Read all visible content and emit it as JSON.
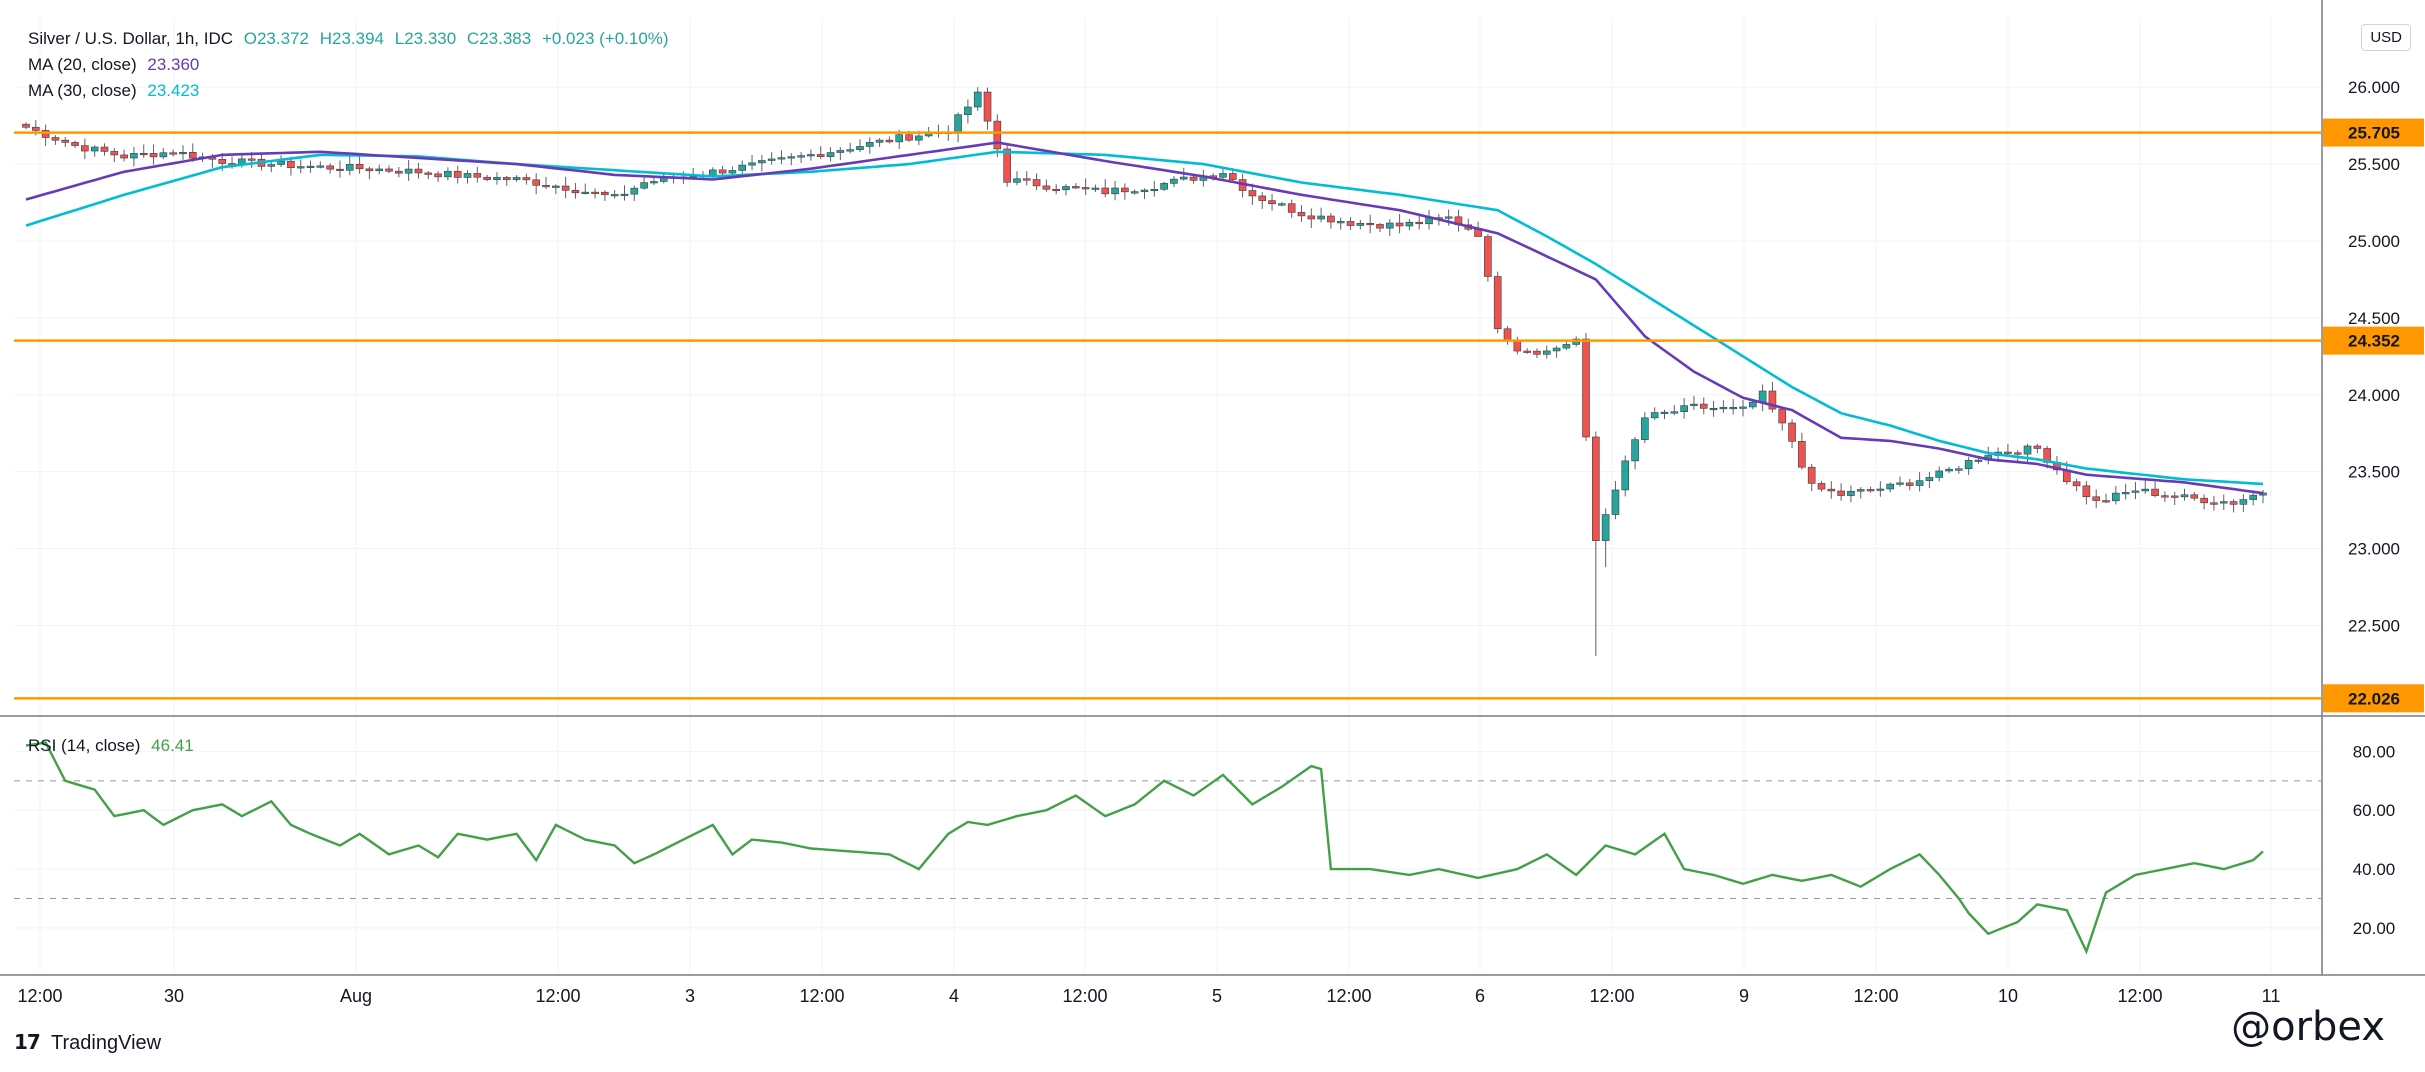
{
  "legend": {
    "title": "Silver / U.S. Dollar, 1h, IDC",
    "open": "O23.372",
    "high": "H23.394",
    "low": "L23.330",
    "close": "C23.383",
    "change": "+0.023 (+0.10%)",
    "ma20_label": "MA (20, close)",
    "ma20_value": "23.360",
    "ma30_label": "MA (30, close)",
    "ma30_value": "23.423",
    "rsi_label": "RSI (14, close)",
    "rsi_value": "46.41"
  },
  "currency": "USD",
  "footer": {
    "brand": "TradingView",
    "watermark": "@orbex"
  },
  "colors": {
    "up": "#26a69a",
    "down": "#ef5350",
    "level": "#ff9800",
    "ma20": "#673ab7",
    "ma30": "#00bcd4",
    "rsi": "#43a047",
    "grid": "#f0f3fa"
  },
  "chart_data": {
    "type": "candlestick",
    "price_axis": {
      "ticks": [
        "26.000",
        "25.500",
        "25.000",
        "24.500",
        "24.000",
        "23.500",
        "23.000",
        "22.500"
      ],
      "range": [
        21.95,
        26.45
      ]
    },
    "rsi_axis": {
      "ticks": [
        "80.00",
        "60.00",
        "40.00",
        "20.00"
      ],
      "range": [
        5,
        90
      ],
      "bands": [
        70,
        30
      ]
    },
    "time_axis": [
      "12:00",
      "30",
      "Aug",
      "12:00",
      "3",
      "12:00",
      "4",
      "12:00",
      "5",
      "12:00",
      "6",
      "12:00",
      "9",
      "12:00",
      "10",
      "12:00",
      "11"
    ],
    "levels": [
      {
        "value": 25.705,
        "label": "25.705"
      },
      {
        "value": 24.352,
        "label": "24.352"
      },
      {
        "value": 22.026,
        "label": "22.026"
      }
    ],
    "anchors": [
      [
        0,
        25.74
      ],
      [
        5,
        25.62
      ],
      [
        10,
        25.55
      ],
      [
        15,
        25.58
      ],
      [
        20,
        25.52
      ],
      [
        25,
        25.5
      ],
      [
        30,
        25.48
      ],
      [
        35,
        25.47
      ],
      [
        40,
        25.45
      ],
      [
        45,
        25.42
      ],
      [
        50,
        25.4
      ],
      [
        55,
        25.35
      ],
      [
        60,
        25.28
      ],
      [
        63,
        25.38
      ],
      [
        70,
        25.45
      ],
      [
        75,
        25.5
      ],
      [
        80,
        25.56
      ],
      [
        85,
        25.62
      ],
      [
        90,
        25.68
      ],
      [
        94,
        25.72
      ],
      [
        97,
        25.95
      ],
      [
        99,
        25.6
      ],
      [
        100,
        25.4
      ],
      [
        105,
        25.35
      ],
      [
        110,
        25.32
      ],
      [
        115,
        25.36
      ],
      [
        122,
        25.45
      ],
      [
        125,
        25.3
      ],
      [
        130,
        25.18
      ],
      [
        135,
        25.12
      ],
      [
        140,
        25.1
      ],
      [
        145,
        25.15
      ],
      [
        148,
        25.05
      ],
      [
        150,
        24.45
      ],
      [
        152,
        24.3
      ],
      [
        155,
        24.28
      ],
      [
        158,
        24.36
      ],
      [
        160,
        23.05
      ],
      [
        162,
        23.4
      ],
      [
        165,
        23.85
      ],
      [
        170,
        23.92
      ],
      [
        175,
        23.9
      ],
      [
        177,
        24.0
      ],
      [
        180,
        23.7
      ],
      [
        182,
        23.4
      ],
      [
        185,
        23.35
      ],
      [
        190,
        23.4
      ],
      [
        195,
        23.48
      ],
      [
        200,
        23.62
      ],
      [
        205,
        23.65
      ],
      [
        208,
        23.45
      ],
      [
        211,
        23.3
      ],
      [
        215,
        23.38
      ],
      [
        220,
        23.33
      ],
      [
        225,
        23.3
      ],
      [
        228,
        23.37
      ]
    ],
    "ma20": [
      [
        0,
        25.27
      ],
      [
        10,
        25.45
      ],
      [
        20,
        25.56
      ],
      [
        30,
        25.58
      ],
      [
        40,
        25.54
      ],
      [
        50,
        25.5
      ],
      [
        60,
        25.43
      ],
      [
        70,
        25.4
      ],
      [
        80,
        25.47
      ],
      [
        90,
        25.56
      ],
      [
        99,
        25.64
      ],
      [
        110,
        25.52
      ],
      [
        120,
        25.42
      ],
      [
        130,
        25.3
      ],
      [
        140,
        25.2
      ],
      [
        150,
        25.05
      ],
      [
        160,
        24.75
      ],
      [
        165,
        24.38
      ],
      [
        170,
        24.15
      ],
      [
        175,
        23.98
      ],
      [
        180,
        23.9
      ],
      [
        185,
        23.72
      ],
      [
        190,
        23.7
      ],
      [
        195,
        23.65
      ],
      [
        200,
        23.58
      ],
      [
        205,
        23.55
      ],
      [
        210,
        23.48
      ],
      [
        220,
        23.43
      ],
      [
        228,
        23.36
      ]
    ],
    "ma30": [
      [
        0,
        25.1
      ],
      [
        10,
        25.3
      ],
      [
        20,
        25.48
      ],
      [
        30,
        25.56
      ],
      [
        40,
        25.55
      ],
      [
        50,
        25.5
      ],
      [
        60,
        25.46
      ],
      [
        70,
        25.42
      ],
      [
        80,
        25.45
      ],
      [
        90,
        25.5
      ],
      [
        99,
        25.58
      ],
      [
        110,
        25.56
      ],
      [
        120,
        25.5
      ],
      [
        130,
        25.38
      ],
      [
        140,
        25.3
      ],
      [
        150,
        25.2
      ],
      [
        155,
        25.03
      ],
      [
        160,
        24.85
      ],
      [
        165,
        24.65
      ],
      [
        170,
        24.45
      ],
      [
        175,
        24.25
      ],
      [
        180,
        24.05
      ],
      [
        185,
        23.88
      ],
      [
        190,
        23.8
      ],
      [
        195,
        23.7
      ],
      [
        200,
        23.62
      ],
      [
        205,
        23.58
      ],
      [
        210,
        23.52
      ],
      [
        220,
        23.45
      ],
      [
        228,
        23.42
      ]
    ],
    "rsi": [
      [
        0,
        82
      ],
      [
        2,
        83
      ],
      [
        4,
        70
      ],
      [
        7,
        67
      ],
      [
        9,
        58
      ],
      [
        12,
        60
      ],
      [
        14,
        55
      ],
      [
        17,
        60
      ],
      [
        20,
        62
      ],
      [
        22,
        58
      ],
      [
        25,
        63
      ],
      [
        27,
        55
      ],
      [
        29,
        52
      ],
      [
        32,
        48
      ],
      [
        34,
        52
      ],
      [
        37,
        45
      ],
      [
        40,
        48
      ],
      [
        42,
        44
      ],
      [
        44,
        52
      ],
      [
        47,
        50
      ],
      [
        50,
        52
      ],
      [
        52,
        43
      ],
      [
        54,
        55
      ],
      [
        57,
        50
      ],
      [
        60,
        48
      ],
      [
        62,
        42
      ],
      [
        64,
        45
      ],
      [
        67,
        50
      ],
      [
        70,
        55
      ],
      [
        72,
        45
      ],
      [
        74,
        50
      ],
      [
        77,
        49
      ],
      [
        80,
        47
      ],
      [
        84,
        46
      ],
      [
        88,
        45
      ],
      [
        91,
        40
      ],
      [
        94,
        52
      ],
      [
        96,
        56
      ],
      [
        98,
        55
      ],
      [
        101,
        58
      ],
      [
        104,
        60
      ],
      [
        107,
        65
      ],
      [
        110,
        58
      ],
      [
        113,
        62
      ],
      [
        116,
        70
      ],
      [
        119,
        65
      ],
      [
        122,
        72
      ],
      [
        125,
        62
      ],
      [
        128,
        68
      ],
      [
        131,
        75
      ],
      [
        132,
        74
      ],
      [
        133,
        40
      ],
      [
        137,
        40
      ],
      [
        141,
        38
      ],
      [
        144,
        40
      ],
      [
        148,
        37
      ],
      [
        152,
        40
      ],
      [
        155,
        45
      ],
      [
        158,
        38
      ],
      [
        161,
        48
      ],
      [
        164,
        45
      ],
      [
        167,
        52
      ],
      [
        169,
        40
      ],
      [
        172,
        38
      ],
      [
        175,
        35
      ],
      [
        178,
        38
      ],
      [
        181,
        36
      ],
      [
        184,
        38
      ],
      [
        187,
        34
      ],
      [
        190,
        40
      ],
      [
        193,
        45
      ],
      [
        195,
        38
      ],
      [
        197,
        30
      ],
      [
        198,
        25
      ],
      [
        200,
        18
      ],
      [
        203,
        22
      ],
      [
        205,
        28
      ],
      [
        208,
        26
      ],
      [
        210,
        12
      ],
      [
        212,
        32
      ],
      [
        215,
        38
      ],
      [
        218,
        40
      ],
      [
        221,
        42
      ],
      [
        224,
        40
      ],
      [
        227,
        43
      ],
      [
        228,
        46
      ]
    ],
    "series": [
      {
        "name": "MA (20, close)",
        "values_ref": "ma20"
      },
      {
        "name": "MA (30, close)",
        "values_ref": "ma30"
      },
      {
        "name": "RSI (14, close)",
        "values_ref": "rsi"
      }
    ]
  }
}
